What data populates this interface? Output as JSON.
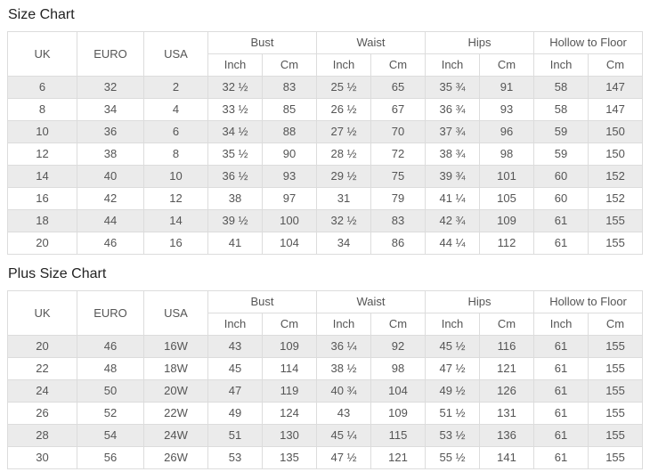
{
  "colors": {
    "row_stripe": "#ebebeb",
    "border": "#dcdcdc",
    "text": "#555555",
    "title_text": "#222222",
    "background": "#ffffff"
  },
  "chart_data": [
    {
      "type": "table",
      "title": "Size Chart",
      "head": {
        "uk": "UK",
        "euro": "EURO",
        "usa": "USA",
        "groups": [
          "Bust",
          "Waist",
          "Hips",
          "Hollow to Floor"
        ],
        "units": [
          "Inch",
          "Cm"
        ]
      },
      "rows": [
        [
          "6",
          "32",
          "2",
          "32 ½",
          "83",
          "25 ½",
          "65",
          "35 ¾",
          "91",
          "58",
          "147"
        ],
        [
          "8",
          "34",
          "4",
          "33 ½",
          "85",
          "26 ½",
          "67",
          "36 ¾",
          "93",
          "58",
          "147"
        ],
        [
          "10",
          "36",
          "6",
          "34 ½",
          "88",
          "27 ½",
          "70",
          "37 ¾",
          "96",
          "59",
          "150"
        ],
        [
          "12",
          "38",
          "8",
          "35 ½",
          "90",
          "28 ½",
          "72",
          "38 ¾",
          "98",
          "59",
          "150"
        ],
        [
          "14",
          "40",
          "10",
          "36 ½",
          "93",
          "29 ½",
          "75",
          "39 ¾",
          "101",
          "60",
          "152"
        ],
        [
          "16",
          "42",
          "12",
          "38",
          "97",
          "31",
          "79",
          "41 ¼",
          "105",
          "60",
          "152"
        ],
        [
          "18",
          "44",
          "14",
          "39 ½",
          "100",
          "32 ½",
          "83",
          "42 ¾",
          "109",
          "61",
          "155"
        ],
        [
          "20",
          "46",
          "16",
          "41",
          "104",
          "34",
          "86",
          "44 ¼",
          "112",
          "61",
          "155"
        ]
      ]
    },
    {
      "type": "table",
      "title": "Plus Size Chart",
      "head": {
        "uk": "UK",
        "euro": "EURO",
        "usa": "USA",
        "groups": [
          "Bust",
          "Waist",
          "Hips",
          "Hollow to Floor"
        ],
        "units": [
          "Inch",
          "Cm"
        ]
      },
      "rows": [
        [
          "20",
          "46",
          "16W",
          "43",
          "109",
          "36 ¼",
          "92",
          "45 ½",
          "116",
          "61",
          "155"
        ],
        [
          "22",
          "48",
          "18W",
          "45",
          "114",
          "38 ½",
          "98",
          "47 ½",
          "121",
          "61",
          "155"
        ],
        [
          "24",
          "50",
          "20W",
          "47",
          "119",
          "40 ¾",
          "104",
          "49 ½",
          "126",
          "61",
          "155"
        ],
        [
          "26",
          "52",
          "22W",
          "49",
          "124",
          "43",
          "109",
          "51 ½",
          "131",
          "61",
          "155"
        ],
        [
          "28",
          "54",
          "24W",
          "51",
          "130",
          "45 ¼",
          "115",
          "53 ½",
          "136",
          "61",
          "155"
        ],
        [
          "30",
          "56",
          "26W",
          "53",
          "135",
          "47 ½",
          "121",
          "55 ½",
          "141",
          "61",
          "155"
        ]
      ]
    }
  ]
}
